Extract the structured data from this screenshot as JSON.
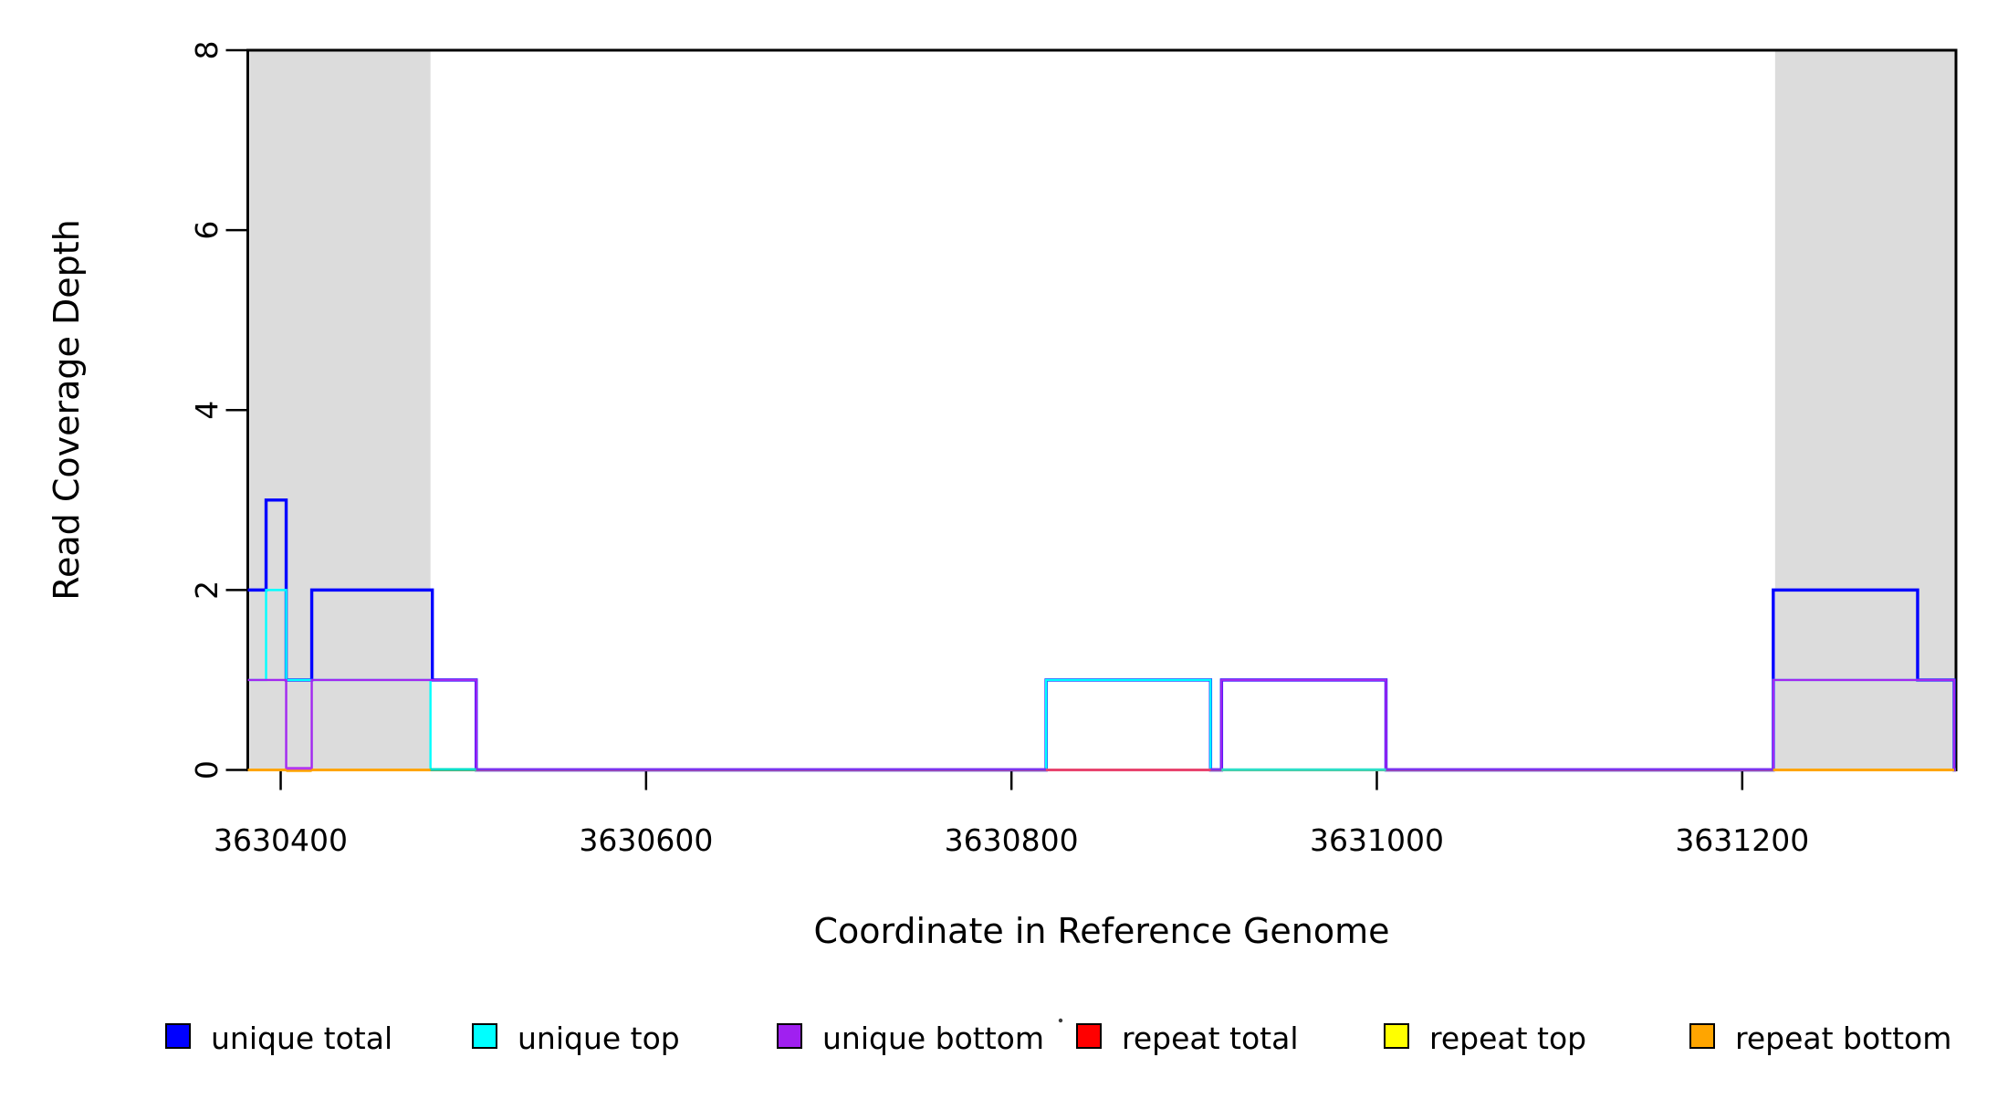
{
  "figure": {
    "background": "#FFFFFF",
    "plot_border_color": "#000000",
    "shading_color": "#DCDCDC"
  },
  "chart_data": {
    "type": "step-line",
    "title": "",
    "xlabel": "Coordinate in Reference Genome",
    "ylabel": "Read Coverage Depth",
    "x_axis": {
      "label": "Coordinate in Reference Genome",
      "range": [
        3630382,
        3631317
      ],
      "ticks": [
        3630400,
        3630600,
        3630800,
        3631000,
        3631200
      ],
      "tick_labels": [
        "3630400",
        "3630600",
        "3630800",
        "3631000",
        "3631200"
      ]
    },
    "y_axis": {
      "label": "Read Coverage Depth",
      "range": [
        0,
        8
      ],
      "ticks": [
        0,
        2,
        4,
        6,
        8
      ],
      "tick_labels": [
        "0",
        "2",
        "4",
        "6",
        "8"
      ]
    },
    "grid": false,
    "shaded_regions": [
      {
        "name": "repeat-region-left",
        "start": 3630383,
        "end": 3630482
      },
      {
        "name": "repeat-region-right",
        "start": 3631218,
        "end": 3631317
      }
    ],
    "series": [
      {
        "name": "unique total",
        "color": "#0000FF",
        "line_width": 3.4,
        "steps": [
          [
            3630382,
            2
          ],
          [
            3630392,
            3
          ],
          [
            3630403,
            1
          ],
          [
            3630417,
            2
          ],
          [
            3630483,
            1
          ],
          [
            3630507,
            0
          ],
          [
            3630819,
            1
          ],
          [
            3630909,
            0
          ],
          [
            3630915,
            1
          ],
          [
            3631005,
            0
          ],
          [
            3631217,
            2
          ],
          [
            3631296,
            1
          ],
          [
            3631316,
            0
          ]
        ],
        "x_end": 3631317
      },
      {
        "name": "unique top",
        "color": "#00FFFF",
        "line_width": 2.4,
        "steps": [
          [
            3630382,
            1
          ],
          [
            3630392,
            2
          ],
          [
            3630403,
            1
          ],
          [
            3630482,
            0
          ],
          [
            3630819,
            1
          ],
          [
            3630909,
            0
          ],
          [
            3631217,
            1
          ],
          [
            3631316,
            0
          ]
        ],
        "x_end": 3631317
      },
      {
        "name": "unique bottom",
        "color": "#A228F0",
        "line_width": 2.4,
        "steps": [
          [
            3630382,
            1
          ],
          [
            3630403,
            0
          ],
          [
            3630417,
            1
          ],
          [
            3630507,
            0
          ],
          [
            3630915,
            1
          ],
          [
            3631005,
            0
          ],
          [
            3631217,
            1
          ],
          [
            3631316,
            0
          ]
        ],
        "x_end": 3631317
      },
      {
        "name": "repeat total",
        "color": "#FF0000",
        "line_width": 2.4,
        "steps": [
          [
            3630382,
            0
          ]
        ],
        "x_end": 3631317
      },
      {
        "name": "repeat top",
        "color": "#FFFF00",
        "line_width": 2.2,
        "steps": [
          [
            3630382,
            0
          ]
        ],
        "x_end": 3631317
      },
      {
        "name": "repeat bottom",
        "color": "#FFA500",
        "line_width": 2.2,
        "steps": [
          [
            3630382,
            0
          ]
        ],
        "x_end": 3631317
      }
    ],
    "baseline_visible_segments": [
      {
        "from": 3630382,
        "to": 3630403,
        "color": "#FFA500",
        "dy": 0
      },
      {
        "from": 3630403,
        "to": 3630417,
        "color": "#FFA500",
        "dy": 0.8
      },
      {
        "from": 3630403,
        "to": 3630417,
        "color": "#B437F0",
        "dy": -1.8
      },
      {
        "from": 3630417,
        "to": 3630482,
        "color": "#FFA500",
        "dy": 0
      },
      {
        "from": 3630482,
        "to": 3630507,
        "color": "#00DFC8",
        "dy": -0.5
      },
      {
        "from": 3630507,
        "to": 3630819,
        "color": "#7B33EE",
        "dy": -0.5
      },
      {
        "from": 3630819,
        "to": 3630909,
        "color": "#E8446E",
        "dy": 0
      },
      {
        "from": 3630909,
        "to": 3630915,
        "color": "#7B33EE",
        "dy": -0.5
      },
      {
        "from": 3630915,
        "to": 3631005,
        "color": "#2EDFC8",
        "dy": -0.3
      },
      {
        "from": 3631005,
        "to": 3631217,
        "color": "#7B33EE",
        "dy": -0.5
      },
      {
        "from": 3631217,
        "to": 3631316,
        "color": "#FFA500",
        "dy": 0
      },
      {
        "from": 3631316,
        "to": 3631317,
        "color": "#7B33EE",
        "dy": -0.5
      }
    ]
  },
  "legend": {
    "items": [
      {
        "label": "unique total",
        "color": "#0000FF"
      },
      {
        "label": "unique top",
        "color": "#00FFFF"
      },
      {
        "label": "unique bottom",
        "color": "#A020F0"
      },
      {
        "label": "repeat total",
        "color": "#FF0000"
      },
      {
        "label": "repeat top",
        "color": "#FFFF00"
      },
      {
        "label": "repeat bottom",
        "color": "#FFA500"
      }
    ]
  }
}
